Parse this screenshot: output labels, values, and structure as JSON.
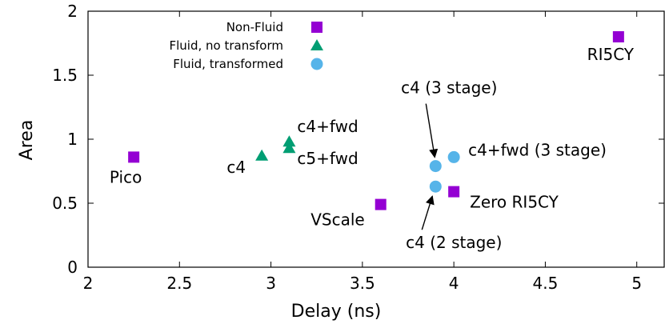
{
  "chart_data": {
    "type": "scatter",
    "xlabel": "Delay (ns)",
    "ylabel": "Area",
    "xlim": [
      2,
      5.15
    ],
    "ylim": [
      0,
      2
    ],
    "xticks": [
      "2",
      "2.5",
      "3",
      "3.5",
      "4",
      "4.5",
      "5"
    ],
    "yticks": [
      "0",
      "0.5",
      "1",
      "1.5",
      "2"
    ],
    "grid": false,
    "legend_position": "top-left",
    "series": [
      {
        "name": "Non-Fluid",
        "marker": "square",
        "color": "#9400d3",
        "points": [
          {
            "label": "Pico",
            "x": 2.25,
            "y": 0.86
          },
          {
            "label": "VScale",
            "x": 3.6,
            "y": 0.49
          },
          {
            "label": "Zero RI5CY",
            "x": 4.0,
            "y": 0.59
          },
          {
            "label": "RI5CY",
            "x": 4.9,
            "y": 1.8
          }
        ]
      },
      {
        "name": "Fluid, no transform",
        "marker": "triangle",
        "color": "#009e73",
        "points": [
          {
            "label": "c4",
            "x": 2.95,
            "y": 0.87
          },
          {
            "label": "c4+fwd",
            "x": 3.1,
            "y": 0.98
          },
          {
            "label": "c5+fwd",
            "x": 3.1,
            "y": 0.93
          }
        ]
      },
      {
        "name": "Fluid, transformed",
        "marker": "circle",
        "color": "#56b4e9",
        "points": [
          {
            "label": "c4 (3 stage)",
            "x": 3.9,
            "y": 0.79
          },
          {
            "label": "c4+fwd (3 stage)",
            "x": 4.0,
            "y": 0.86
          },
          {
            "label": "c4 (2 stage)",
            "x": 3.9,
            "y": 0.63
          }
        ]
      }
    ]
  }
}
